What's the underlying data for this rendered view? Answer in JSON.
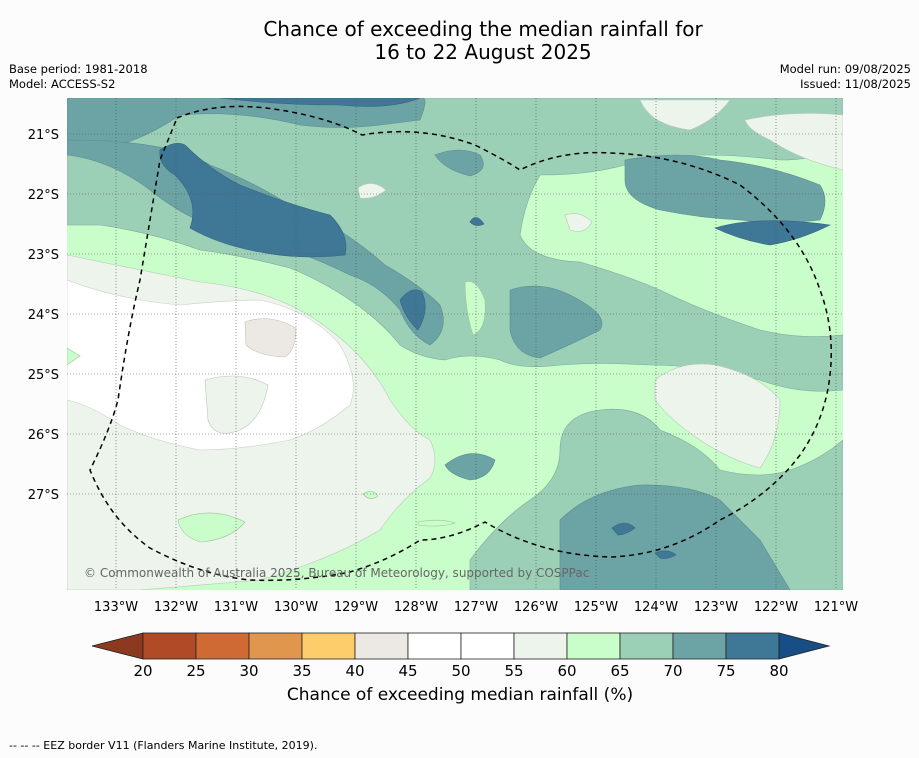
{
  "title_line1": "Chance of exceeding the median rainfall for",
  "title_line2": "16 to 22 August 2025",
  "base_period": "Base period: 1981-2018",
  "model": "Model: ACCESS-S2",
  "model_run": "Model run: 09/08/2025",
  "issued": "Issued: 11/08/2025",
  "copyright": "© Commonwealth of Australia 2025, Bureau of Meteorology, supported by COSPPac",
  "lat_labels": [
    "21°S",
    "22°S",
    "23°S",
    "24°S",
    "25°S",
    "26°S",
    "27°S"
  ],
  "lon_labels": [
    "133°W",
    "132°W",
    "131°W",
    "130°W",
    "129°W",
    "128°W",
    "127°W",
    "126°W",
    "125°W",
    "124°W",
    "123°W",
    "122°W",
    "121°W"
  ],
  "colorbar": {
    "title": "Chance of exceeding median rainfall (%)",
    "ticks": [
      "20",
      "25",
      "30",
      "35",
      "40",
      "45",
      "50",
      "55",
      "60",
      "65",
      "70",
      "75",
      "80"
    ],
    "colors": [
      "#b14b27",
      "#cf6a35",
      "#e0964c",
      "#fdcd6c",
      "#ece8e3",
      "#ffffff",
      "#ffffff",
      "#ecf4ec",
      "#c9fdc9",
      "#9bd0b7",
      "#6ca3a5",
      "#3f7896"
    ],
    "under_color": "#8b3a20",
    "over_color": "#164e85"
  },
  "footnote": "--  --  -- EEZ border V11 (Flanders Marine Institute, 2019)."
}
